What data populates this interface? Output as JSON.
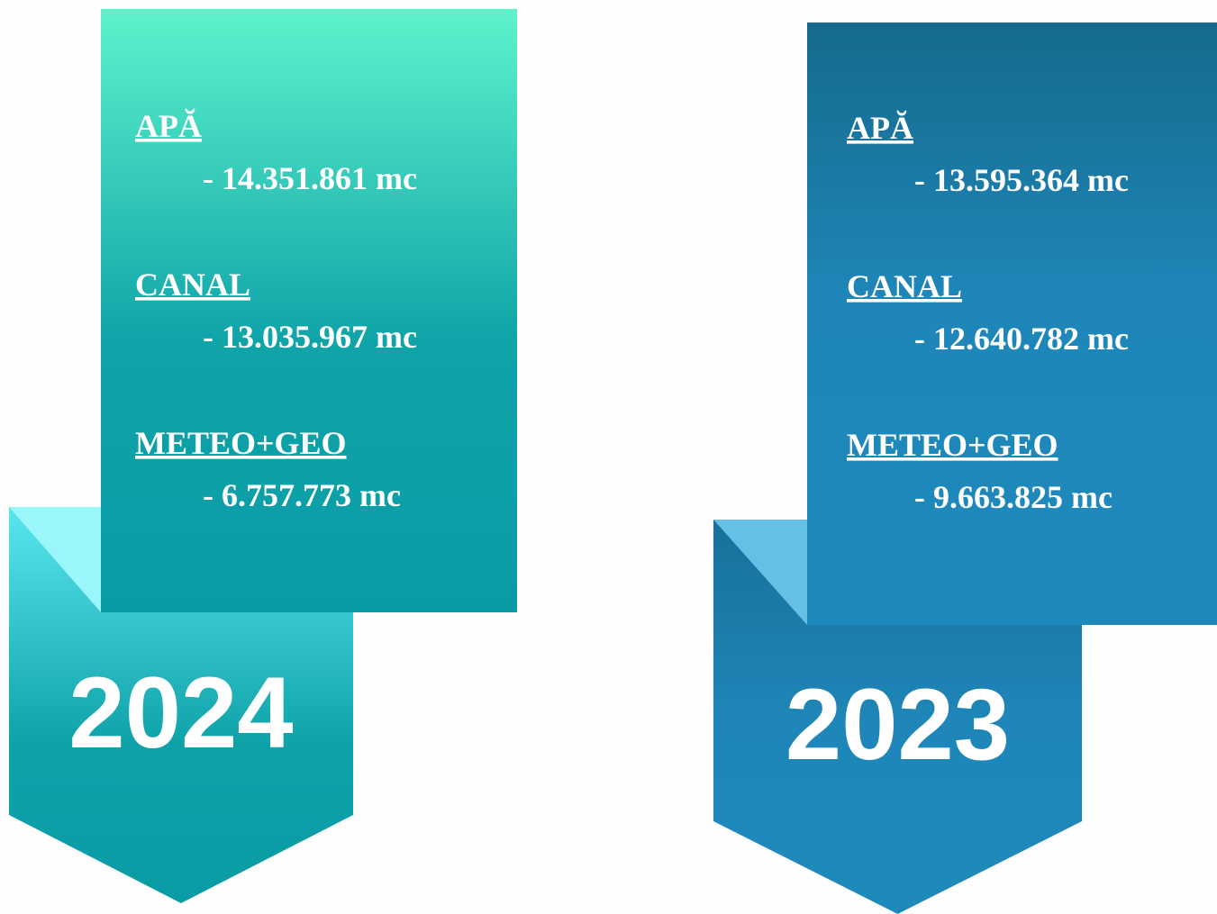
{
  "panels": [
    {
      "year": "2024",
      "items": [
        {
          "label": "APĂ",
          "value": "- 14.351.861 mc"
        },
        {
          "label": "CANAL",
          "value": "- 13.035.967 mc"
        },
        {
          "label": "METEO+GEO",
          "value": "- 6.757.773 mc"
        }
      ]
    },
    {
      "year": "2023",
      "items": [
        {
          "label": "APĂ",
          "value": "- 13.595.364 mc"
        },
        {
          "label": "CANAL",
          "value": "- 12.640.782 mc"
        },
        {
          "label": "METEO+GEO",
          "value": "- 9.663.825 mc"
        }
      ]
    }
  ]
}
